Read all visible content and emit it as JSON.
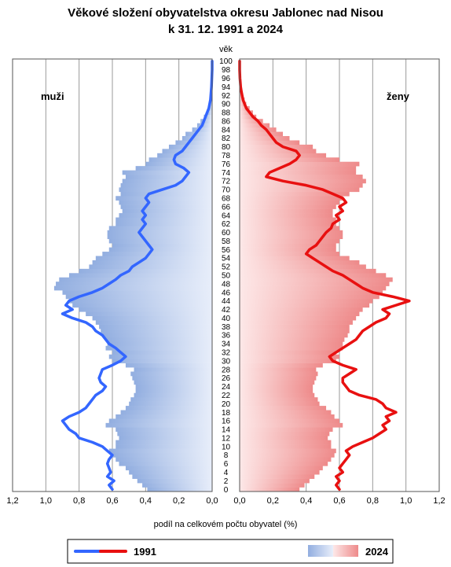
{
  "chart_data": {
    "type": "population-pyramid",
    "title": "Věkové složení obyvatelstva okresu Jablonec nad Nisou",
    "subtitle": "k 31. 12. 1991 a 2024",
    "age_axis_label": "věk",
    "xlabel": "podíl na celkovém počtu obyvatel (%)",
    "left_label": "muži",
    "right_label": "ženy",
    "xlim": [
      0,
      1.2
    ],
    "x_ticks": [
      "1,2",
      "1,0",
      "0,8",
      "0,6",
      "0,4",
      "0,2",
      "0,0"
    ],
    "x_ticks_right": [
      "0,0",
      "0,2",
      "0,4",
      "0,6",
      "0,8",
      "1,0",
      "1,2"
    ],
    "age_ticks": [
      "0",
      "2",
      "4",
      "6",
      "8",
      "10",
      "12",
      "14",
      "16",
      "18",
      "20",
      "22",
      "24",
      "26",
      "28",
      "30",
      "32",
      "34",
      "36",
      "38",
      "40",
      "42",
      "44",
      "46",
      "48",
      "50",
      "52",
      "54",
      "56",
      "58",
      "60",
      "62",
      "64",
      "66",
      "68",
      "70",
      "72",
      "74",
      "76",
      "78",
      "80",
      "82",
      "84",
      "86",
      "88",
      "90",
      "92",
      "94",
      "96",
      "98",
      "100"
    ],
    "grid": true,
    "legend": {
      "position": "bottom",
      "line_label": "1991",
      "bar_label": "2024"
    },
    "colors": {
      "male_line": "#3366ff",
      "female_line": "#e81010",
      "male_bar_dark": "#92aee0",
      "male_bar_light": "#e8eefa",
      "female_bar_dark": "#ee8a8a",
      "female_bar_light": "#fde8e8"
    },
    "ages": [
      0,
      1,
      2,
      3,
      4,
      5,
      6,
      7,
      8,
      9,
      10,
      11,
      12,
      13,
      14,
      15,
      16,
      17,
      18,
      19,
      20,
      21,
      22,
      23,
      24,
      25,
      26,
      27,
      28,
      29,
      30,
      31,
      32,
      33,
      34,
      35,
      36,
      37,
      38,
      39,
      40,
      41,
      42,
      43,
      44,
      45,
      46,
      47,
      48,
      49,
      50,
      51,
      52,
      53,
      54,
      55,
      56,
      57,
      58,
      59,
      60,
      61,
      62,
      63,
      64,
      65,
      66,
      67,
      68,
      69,
      70,
      71,
      72,
      73,
      74,
      75,
      76,
      77,
      78,
      79,
      80,
      81,
      82,
      83,
      84,
      85,
      86,
      87,
      88,
      89,
      90,
      91,
      92,
      93,
      94,
      95,
      96,
      97,
      98,
      99,
      100
    ],
    "series": [
      {
        "name": "muži 2024",
        "values": [
          0.39,
          0.42,
          0.45,
          0.48,
          0.5,
          0.52,
          0.56,
          0.58,
          0.6,
          0.62,
          0.58,
          0.58,
          0.56,
          0.57,
          0.58,
          0.64,
          0.62,
          0.58,
          0.55,
          0.52,
          0.5,
          0.49,
          0.47,
          0.46,
          0.46,
          0.47,
          0.48,
          0.49,
          0.47,
          0.52,
          0.6,
          0.62,
          0.6,
          0.64,
          0.63,
          0.64,
          0.66,
          0.67,
          0.68,
          0.7,
          0.72,
          0.76,
          0.8,
          0.84,
          0.86,
          0.88,
          0.9,
          0.95,
          0.94,
          0.92,
          0.86,
          0.8,
          0.74,
          0.72,
          0.7,
          0.66,
          0.62,
          0.6,
          0.62,
          0.63,
          0.63,
          0.62,
          0.58,
          0.58,
          0.56,
          0.54,
          0.55,
          0.56,
          0.58,
          0.55,
          0.56,
          0.55,
          0.54,
          0.52,
          0.54,
          0.46,
          0.4,
          0.38,
          0.33,
          0.3,
          0.26,
          0.22,
          0.18,
          0.16,
          0.12,
          0.09,
          0.07,
          0.05,
          0.03,
          0.02,
          0.015,
          0.01,
          0.005,
          0.003,
          0.002,
          0.001,
          0.001,
          0,
          0,
          0,
          0
        ]
      },
      {
        "name": "ženy 2024",
        "values": [
          0.36,
          0.39,
          0.42,
          0.45,
          0.48,
          0.5,
          0.53,
          0.55,
          0.57,
          0.58,
          0.55,
          0.55,
          0.53,
          0.54,
          0.56,
          0.62,
          0.6,
          0.57,
          0.55,
          0.52,
          0.48,
          0.47,
          0.45,
          0.44,
          0.44,
          0.45,
          0.46,
          0.47,
          0.46,
          0.5,
          0.58,
          0.6,
          0.58,
          0.62,
          0.62,
          0.63,
          0.65,
          0.66,
          0.66,
          0.68,
          0.7,
          0.72,
          0.74,
          0.78,
          0.8,
          0.84,
          0.86,
          0.88,
          0.9,
          0.92,
          0.88,
          0.82,
          0.76,
          0.72,
          0.66,
          0.6,
          0.58,
          0.58,
          0.6,
          0.62,
          0.62,
          0.6,
          0.58,
          0.58,
          0.56,
          0.56,
          0.58,
          0.6,
          0.62,
          0.66,
          0.72,
          0.74,
          0.76,
          0.74,
          0.7,
          0.7,
          0.72,
          0.6,
          0.52,
          0.46,
          0.44,
          0.36,
          0.3,
          0.26,
          0.22,
          0.18,
          0.14,
          0.1,
          0.08,
          0.06,
          0.04,
          0.03,
          0.02,
          0.015,
          0.01,
          0.005,
          0.003,
          0.002,
          0.001,
          0,
          0
        ]
      },
      {
        "name": "muži 1991",
        "values": [
          0.6,
          0.62,
          0.59,
          0.63,
          0.61,
          0.62,
          0.63,
          0.62,
          0.6,
          0.63,
          0.66,
          0.72,
          0.8,
          0.82,
          0.86,
          0.88,
          0.9,
          0.86,
          0.8,
          0.76,
          0.74,
          0.72,
          0.7,
          0.66,
          0.64,
          0.67,
          0.68,
          0.67,
          0.66,
          0.6,
          0.55,
          0.52,
          0.55,
          0.58,
          0.62,
          0.64,
          0.66,
          0.7,
          0.72,
          0.76,
          0.84,
          0.9,
          0.84,
          0.88,
          0.86,
          0.8,
          0.72,
          0.66,
          0.62,
          0.58,
          0.55,
          0.5,
          0.48,
          0.44,
          0.4,
          0.38,
          0.36,
          0.38,
          0.4,
          0.42,
          0.44,
          0.42,
          0.4,
          0.42,
          0.4,
          0.42,
          0.4,
          0.38,
          0.4,
          0.38,
          0.3,
          0.22,
          0.18,
          0.16,
          0.14,
          0.17,
          0.22,
          0.23,
          0.22,
          0.18,
          0.16,
          0.14,
          0.12,
          0.1,
          0.08,
          0.06,
          0.05,
          0.04,
          0.03,
          0.02,
          0.015,
          0.01,
          0.008,
          0.006,
          0.004,
          0.003,
          0.002,
          0.001,
          0,
          0,
          0
        ]
      },
      {
        "name": "ženy 1991",
        "values": [
          0.6,
          0.58,
          0.6,
          0.58,
          0.62,
          0.6,
          0.62,
          0.64,
          0.66,
          0.64,
          0.68,
          0.74,
          0.8,
          0.84,
          0.88,
          0.86,
          0.9,
          0.88,
          0.94,
          0.88,
          0.86,
          0.82,
          0.72,
          0.66,
          0.64,
          0.62,
          0.62,
          0.66,
          0.7,
          0.62,
          0.56,
          0.54,
          0.58,
          0.62,
          0.66,
          0.7,
          0.72,
          0.74,
          0.78,
          0.82,
          0.88,
          0.9,
          0.86,
          0.94,
          1.02,
          0.92,
          0.8,
          0.74,
          0.7,
          0.66,
          0.62,
          0.56,
          0.52,
          0.48,
          0.44,
          0.4,
          0.42,
          0.46,
          0.48,
          0.5,
          0.52,
          0.55,
          0.56,
          0.6,
          0.58,
          0.62,
          0.6,
          0.64,
          0.62,
          0.56,
          0.5,
          0.4,
          0.26,
          0.16,
          0.18,
          0.24,
          0.3,
          0.34,
          0.36,
          0.34,
          0.26,
          0.22,
          0.2,
          0.18,
          0.16,
          0.13,
          0.11,
          0.08,
          0.06,
          0.04,
          0.03,
          0.02,
          0.015,
          0.01,
          0.006,
          0.004,
          0.002,
          0.001,
          0,
          0,
          0
        ]
      }
    ]
  }
}
